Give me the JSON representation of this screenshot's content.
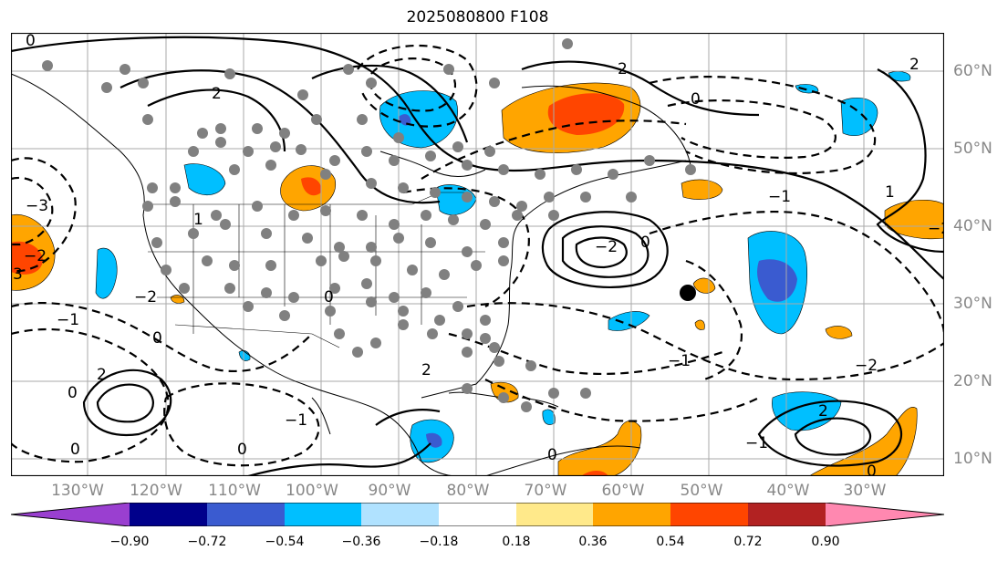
{
  "title": "2025080800 F108",
  "lon_labels": [
    "130°W",
    "120°W",
    "110°W",
    "100°W",
    "90°W",
    "80°W",
    "70°W",
    "60°W",
    "50°W",
    "40°W",
    "30°W"
  ],
  "lat_labels": [
    "60°N",
    "50°N",
    "40°N",
    "30°N",
    "20°N",
    "10°N"
  ],
  "colorbar": {
    "ticks": [
      "−0.90",
      "−0.72",
      "−0.54",
      "−0.36",
      "−0.18",
      "0.18",
      "0.36",
      "0.54",
      "0.72",
      "0.90"
    ],
    "colors": [
      "#9a3fd0",
      "#00008b",
      "#3a5bd0",
      "#00bfff",
      "#b0e2ff",
      "#ffffff",
      "#ffe98a",
      "#ffa500",
      "#ff4500",
      "#b22222",
      "#ff88b0"
    ]
  },
  "contour_labels": [
    "0",
    "2",
    "1",
    "−1",
    "−2",
    "−3",
    "3"
  ],
  "colors": {
    "positive_fill": "#ffa500",
    "negative_fill": "#00bfff",
    "strong_positive": "#ff4500",
    "strong_negative": "#3a5bd0",
    "stations": "#808080",
    "grid": "#aaaaaa"
  }
}
